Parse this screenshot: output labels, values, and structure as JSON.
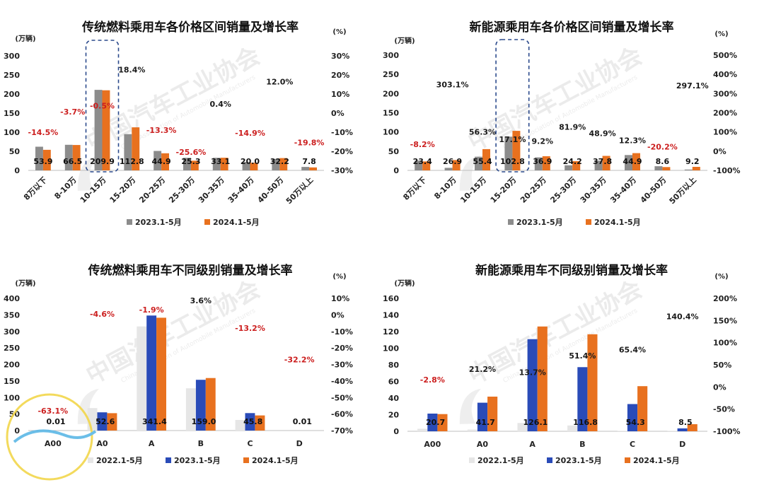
{
  "chart_data": [
    {
      "type": "bar",
      "title": "传统燃料乘用车各价格区间销量及增长率",
      "left_unit": "(万辆)",
      "right_unit": "(%)",
      "ylim": [
        0,
        300
      ],
      "yticks": [
        "0",
        "50",
        "100",
        "150",
        "200",
        "250",
        "300"
      ],
      "y2lim": [
        -30,
        30
      ],
      "y2ticks": [
        "-30%",
        "-20%",
        "-10%",
        "0%",
        "10%",
        "20%",
        "30%"
      ],
      "categories": [
        "8万以下",
        "8-10万",
        "10-15万",
        "15-20万",
        "20-25万",
        "25-30万",
        "30-35万",
        "35-40万",
        "40-50万",
        "50万以上"
      ],
      "series": [
        {
          "name": "2023.1-5月",
          "color": "#8c8c8c",
          "values": [
            62,
            67,
            211,
            95,
            51,
            33,
            33,
            22,
            30,
            9
          ]
        },
        {
          "name": "2024.1-5月",
          "color": "#e8711f",
          "values": [
            53.9,
            66.5,
            209.9,
            112.8,
            44.9,
            25.3,
            33.1,
            20.0,
            32.2,
            7.8
          ]
        }
      ],
      "value_labels": [
        "53.9",
        "66.5",
        "209.9",
        "112.8",
        "44.9",
        "25.3",
        "33.1",
        "20.0",
        "32.2",
        "7.8"
      ],
      "growth": [
        -14.5,
        -3.7,
        -0.5,
        18.4,
        -13.3,
        -25.6,
        0.4,
        -14.9,
        12.0,
        -19.8
      ],
      "growth_labels": [
        "-14.5%",
        "-3.7%",
        "-0.5%",
        "18.4%",
        "-13.3%",
        "-25.6%",
        "0.4%",
        "-14.9%",
        "12.0%",
        "-19.8%"
      ],
      "highlight_index": 2,
      "legend": "bottom"
    },
    {
      "type": "bar",
      "title": "新能源乘用车各价格区间销量及增长率",
      "left_unit": "(万辆)",
      "right_unit": "(%)",
      "ylim": [
        0,
        300
      ],
      "yticks": [
        "0",
        "50",
        "100",
        "150",
        "200",
        "250",
        "300"
      ],
      "y2lim": [
        -100,
        500
      ],
      "y2ticks": [
        "-100%",
        "0%",
        "100%",
        "200%",
        "300%",
        "400%",
        "500%"
      ],
      "categories": [
        "8万以下",
        "8-10万",
        "10-15万",
        "15-20万",
        "20-25万",
        "25-30万",
        "30-35万",
        "35-40万",
        "40-50万",
        "50万以上"
      ],
      "series": [
        {
          "name": "2023.1-5月",
          "color": "#8c8c8c",
          "values": [
            25.5,
            6.7,
            35.5,
            87.8,
            33.8,
            13.3,
            25.4,
            40,
            10.8,
            2.3
          ]
        },
        {
          "name": "2024.1-5月",
          "color": "#e8711f",
          "values": [
            23.4,
            26.9,
            55.4,
            102.8,
            36.9,
            24.2,
            37.8,
            44.9,
            8.6,
            9.2
          ]
        }
      ],
      "value_labels": [
        "23.4",
        "26.9",
        "55.4",
        "102.8",
        "36.9",
        "24.2",
        "37.8",
        "44.9",
        "8.6",
        "9.2"
      ],
      "growth": [
        -8.2,
        303.1,
        56.3,
        17.1,
        9.2,
        81.9,
        48.9,
        12.3,
        -20.2,
        297.1
      ],
      "growth_labels": [
        "-8.2%",
        "303.1%",
        "56.3%",
        "17.1%",
        "9.2%",
        "81.9%",
        "48.9%",
        "12.3%",
        "-20.2%",
        "297.1%"
      ],
      "highlight_index": 3,
      "legend": "bottom"
    },
    {
      "type": "bar",
      "title": "传统燃料乘用车不同级别销量及增长率",
      "left_unit": "(万辆)",
      "right_unit": "(%)",
      "ylim": [
        0,
        400
      ],
      "yticks": [
        "0",
        "50",
        "100",
        "150",
        "200",
        "250",
        "300",
        "350",
        "400"
      ],
      "y2lim": [
        -70,
        10
      ],
      "y2ticks": [
        "-70%",
        "-60%",
        "-50%",
        "-40%",
        "-30%",
        "-20%",
        "-10%",
        "0%",
        "10%"
      ],
      "categories": [
        "A00",
        "A0",
        "A",
        "B",
        "C",
        "D"
      ],
      "series": [
        {
          "name": "2022.1-5月",
          "color": "#e6e6e6",
          "values": [
            0.3,
            68,
            315,
            128,
            32,
            0.01
          ]
        },
        {
          "name": "2023.1-5月",
          "color": "#2a4bb8",
          "values": [
            0.03,
            55.1,
            348,
            153.5,
            52.8,
            0.015
          ]
        },
        {
          "name": "2024.1-5月",
          "color": "#e8711f",
          "values": [
            0.01,
            52.6,
            341.4,
            159.0,
            45.8,
            0.01
          ]
        }
      ],
      "value_labels": [
        "0.01",
        "52.6",
        "341.4",
        "159.0",
        "45.8",
        "0.01"
      ],
      "growth": [
        -63.1,
        -4.6,
        -1.9,
        3.6,
        -13.2,
        -32.2
      ],
      "growth_labels": [
        "-63.1%",
        "-4.6%",
        "-1.9%",
        "3.6%",
        "-13.2%",
        "-32.2%"
      ],
      "legend": "bottom"
    },
    {
      "type": "bar",
      "title": "新能源乘用车不同级别销量及增长率",
      "left_unit": "(万辆)",
      "right_unit": "(%)",
      "ylim": [
        0,
        160
      ],
      "yticks": [
        "0",
        "20",
        "40",
        "60",
        "80",
        "100",
        "120",
        "140",
        "160"
      ],
      "y2lim": [
        -100,
        200
      ],
      "y2ticks": [
        "-100%",
        "-50%",
        "0%",
        "50%",
        "100%",
        "150%",
        "200%"
      ],
      "categories": [
        "A00",
        "A0",
        "A",
        "B",
        "C",
        "D"
      ],
      "series": [
        {
          "name": "2022.1-5月",
          "color": "#e6e6e6",
          "values": [
            3,
            2,
            10,
            7,
            0.5,
            0.3
          ]
        },
        {
          "name": "2023.1-5月",
          "color": "#2a4bb8",
          "values": [
            21.3,
            34.4,
            110.9,
            77.2,
            32.8,
            3.5
          ]
        },
        {
          "name": "2024.1-5月",
          "color": "#e8711f",
          "values": [
            20.7,
            41.7,
            126.1,
            116.8,
            54.3,
            8.5
          ]
        }
      ],
      "value_labels": [
        "20.7",
        "41.7",
        "126.1",
        "116.8",
        "54.3",
        "8.5"
      ],
      "growth": [
        -2.8,
        21.2,
        13.7,
        51.4,
        65.4,
        140.4
      ],
      "growth_labels": [
        "-2.8%",
        "21.2%",
        "13.7%",
        "51.4%",
        "65.4%",
        "140.4%"
      ],
      "legend": "bottom"
    }
  ],
  "watermark": {
    "cn": "中国汽车工业协会",
    "en": "China Association of Automobile Manufacturers"
  },
  "colors": {
    "negative_label": "#cc1f1f",
    "positive_label": "#1a1a1a",
    "highlight_box": "#2b4a8c"
  }
}
